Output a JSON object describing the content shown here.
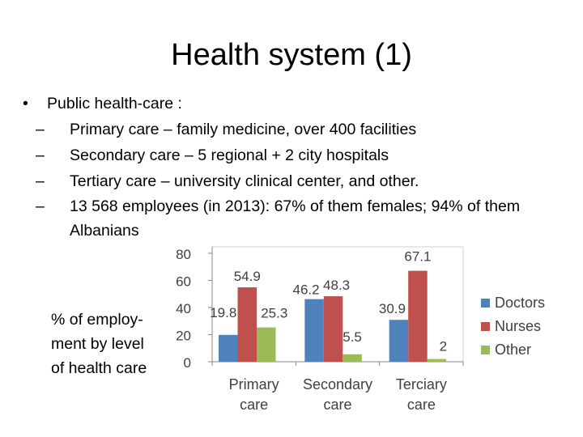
{
  "slide": {
    "title": "Health system (1)",
    "bullet": {
      "symbol": "•",
      "text": "Public health-care :",
      "subs": [
        "Primary care – family medicine, over 400 facilities",
        "Secondary care – 5 regional + 2 city hospitals",
        "Tertiary care – university clinical center, and other.",
        "13 568 employees (in 2013): 67% of them females; 94% of them Albanians"
      ]
    },
    "dash": "–",
    "side_label": [
      "% of employ-",
      "ment by level",
      "of health care"
    ]
  },
  "chart_data": {
    "type": "bar",
    "categories": [
      "Primary care",
      "Secondary care",
      "Terciary care"
    ],
    "series": [
      {
        "name": "Doctors",
        "values": [
          19.8,
          46.2,
          30.9
        ],
        "color": "#4F81BD"
      },
      {
        "name": "Nurses",
        "values": [
          54.9,
          48.3,
          67.1
        ],
        "color": "#C0504D"
      },
      {
        "name": "Other",
        "values": [
          25.3,
          5.5,
          2
        ],
        "color": "#9BBB59"
      }
    ],
    "ylim": [
      0,
      80
    ],
    "yticks": [
      0,
      20,
      40,
      60,
      80
    ],
    "grid": false,
    "legend": "right"
  }
}
